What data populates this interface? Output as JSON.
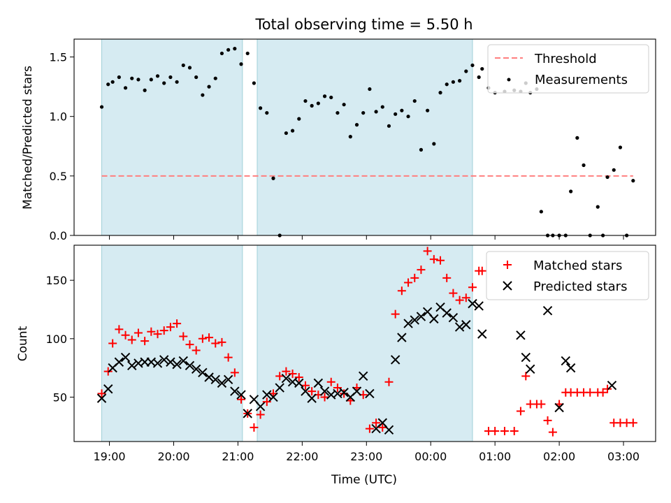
{
  "chart_data": [
    {
      "type": "scatter",
      "title": "Total observing time = 5.50 h",
      "ylabel": "Matched/Predicted stars",
      "xlabel": "",
      "ylim": [
        0,
        1.65
      ],
      "yticks": [
        "0.0",
        "0.5",
        "1.0",
        "1.5"
      ],
      "yticks_values": [
        0,
        0.5,
        1.0,
        1.5
      ],
      "xtick_labels": [],
      "grid": false,
      "legend_position": "upper right",
      "shaded_intervals_hours": [
        [
          18.88,
          21.07
        ],
        [
          21.3,
          24.65
        ]
      ],
      "threshold": {
        "name": "Threshold",
        "value": 0.5,
        "x_range": [
          18.88,
          27.15
        ],
        "color": "#ff7f7f"
      },
      "series": [
        {
          "name": "Measurements",
          "marker": "dot",
          "color": "#000000",
          "x": [
            18.88,
            18.98,
            19.05,
            19.15,
            19.25,
            19.35,
            19.45,
            19.55,
            19.65,
            19.75,
            19.85,
            19.95,
            20.05,
            20.15,
            20.25,
            20.35,
            20.45,
            20.55,
            20.65,
            20.75,
            20.85,
            20.95,
            21.05,
            21.15,
            21.25,
            21.35,
            21.45,
            21.55,
            21.65,
            21.75,
            21.85,
            21.95,
            22.05,
            22.15,
            22.25,
            22.35,
            22.45,
            22.55,
            22.65,
            22.75,
            22.85,
            22.95,
            23.05,
            23.15,
            23.25,
            23.35,
            23.45,
            23.55,
            23.65,
            23.75,
            23.85,
            23.95,
            24.05,
            24.15,
            24.25,
            24.35,
            24.45,
            24.55,
            24.65,
            24.75,
            24.8,
            24.9,
            25.0,
            25.15,
            25.3,
            25.4,
            25.48,
            25.55,
            25.65,
            25.72,
            25.82,
            25.9,
            26.0,
            26.1,
            26.18,
            26.28,
            26.38,
            26.48,
            26.6,
            26.68,
            26.75,
            26.85,
            26.95,
            27.05,
            27.15
          ],
          "y": [
            1.08,
            1.27,
            1.29,
            1.33,
            1.24,
            1.32,
            1.31,
            1.22,
            1.31,
            1.34,
            1.28,
            1.33,
            1.29,
            1.43,
            1.41,
            1.33,
            1.18,
            1.25,
            1.32,
            1.53,
            1.56,
            1.57,
            1.44,
            1.53,
            1.28,
            1.07,
            1.03,
            0.48,
            0.0,
            0.86,
            0.88,
            0.98,
            1.13,
            1.09,
            1.11,
            1.17,
            1.16,
            1.03,
            1.1,
            0.83,
            0.93,
            1.03,
            1.23,
            1.04,
            1.08,
            0.92,
            1.02,
            1.05,
            1.0,
            1.13,
            0.72,
            1.05,
            0.77,
            1.2,
            1.27,
            1.29,
            1.3,
            1.38,
            1.43,
            1.33,
            1.4,
            1.24,
            1.2,
            1.21,
            1.22,
            1.21,
            1.28,
            1.2,
            1.23,
            0.2,
            0.0,
            0.0,
            0.0,
            0.0,
            0.37,
            0.82,
            0.59,
            0.0,
            0.24,
            0.0,
            0.49,
            0.55,
            0.74,
            0.0,
            0.46
          ]
        }
      ]
    },
    {
      "type": "scatter",
      "title": "",
      "xlabel": "Time (UTC)",
      "ylabel": "Count",
      "ylim": [
        12,
        180
      ],
      "yticks": [
        "50",
        "100",
        "150"
      ],
      "yticks_values": [
        50,
        100,
        150
      ],
      "xlim_hours": [
        18.45,
        27.5
      ],
      "xticks": [
        "19:00",
        "20:00",
        "21:00",
        "22:00",
        "23:00",
        "00:00",
        "01:00",
        "02:00",
        "03:00"
      ],
      "xticks_hours": [
        19,
        20,
        21,
        22,
        23,
        24,
        25,
        26,
        27
      ],
      "grid": false,
      "legend_position": "upper right",
      "shaded_intervals_hours": [
        [
          18.88,
          21.07
        ],
        [
          21.3,
          24.65
        ]
      ],
      "series": [
        {
          "name": "Matched stars",
          "marker": "plus",
          "color": "#ff0000",
          "x": [
            18.88,
            18.98,
            19.05,
            19.15,
            19.25,
            19.35,
            19.45,
            19.55,
            19.65,
            19.75,
            19.85,
            19.95,
            20.05,
            20.15,
            20.25,
            20.35,
            20.45,
            20.55,
            20.65,
            20.75,
            20.85,
            20.95,
            21.05,
            21.15,
            21.25,
            21.35,
            21.45,
            21.55,
            21.65,
            21.75,
            21.85,
            21.95,
            22.05,
            22.15,
            22.25,
            22.35,
            22.45,
            22.55,
            22.65,
            22.75,
            22.85,
            22.95,
            23.05,
            23.15,
            23.25,
            23.35,
            23.45,
            23.55,
            23.65,
            23.75,
            23.85,
            23.95,
            24.05,
            24.15,
            24.25,
            24.35,
            24.45,
            24.55,
            24.65,
            24.75,
            24.8,
            24.9,
            25.0,
            25.15,
            25.3,
            25.4,
            25.48,
            25.55,
            25.65,
            25.72,
            25.82,
            25.9,
            26.0,
            26.1,
            26.18,
            26.28,
            26.38,
            26.48,
            26.6,
            26.68,
            26.75,
            26.85,
            26.95,
            27.05,
            27.15
          ],
          "y": [
            53,
            72,
            96,
            108,
            103,
            99,
            105,
            98,
            106,
            104,
            107,
            110,
            113,
            102,
            95,
            90,
            100,
            101,
            96,
            97,
            84,
            71,
            48,
            36,
            24,
            35,
            46,
            53,
            68,
            72,
            70,
            67,
            60,
            55,
            52,
            50,
            63,
            58,
            53,
            47,
            58,
            52,
            23,
            28,
            24,
            63,
            121,
            141,
            148,
            152,
            159,
            175,
            168,
            167,
            152,
            139,
            133,
            135,
            144,
            158,
            158,
            21,
            21,
            21,
            21,
            38,
            68,
            44,
            44,
            44,
            30,
            20,
            44,
            54,
            54,
            54,
            54,
            54,
            54,
            54,
            57,
            28,
            28,
            28,
            28
          ]
        },
        {
          "name": "Predicted stars",
          "marker": "x",
          "color": "#000000",
          "x": [
            18.88,
            18.98,
            19.05,
            19.15,
            19.25,
            19.35,
            19.45,
            19.55,
            19.65,
            19.75,
            19.85,
            19.95,
            20.05,
            20.15,
            20.25,
            20.35,
            20.45,
            20.55,
            20.65,
            20.75,
            20.85,
            20.95,
            21.05,
            21.15,
            21.25,
            21.35,
            21.45,
            21.55,
            21.65,
            21.75,
            21.85,
            21.95,
            22.05,
            22.15,
            22.25,
            22.35,
            22.45,
            22.55,
            22.65,
            22.75,
            22.85,
            22.95,
            23.05,
            23.15,
            23.25,
            23.35,
            23.45,
            23.55,
            23.65,
            23.75,
            23.85,
            23.95,
            24.05,
            24.15,
            24.25,
            24.35,
            24.45,
            24.55,
            24.65,
            24.75,
            24.8,
            25.4,
            25.48,
            25.55,
            25.82,
            26.0,
            26.1,
            26.18,
            26.82
          ],
          "y": [
            49,
            57,
            75,
            80,
            84,
            77,
            79,
            80,
            80,
            79,
            82,
            80,
            78,
            81,
            77,
            74,
            71,
            67,
            65,
            62,
            65,
            55,
            52,
            36,
            48,
            42,
            52,
            50,
            58,
            66,
            63,
            62,
            55,
            49,
            62,
            55,
            52,
            53,
            54,
            50,
            55,
            68,
            53,
            23,
            28,
            22,
            82,
            101,
            113,
            116,
            119,
            123,
            117,
            127,
            122,
            118,
            110,
            112,
            130,
            128,
            104,
            103,
            84,
            74,
            124,
            41,
            81,
            75,
            60
          ]
        }
      ]
    }
  ]
}
